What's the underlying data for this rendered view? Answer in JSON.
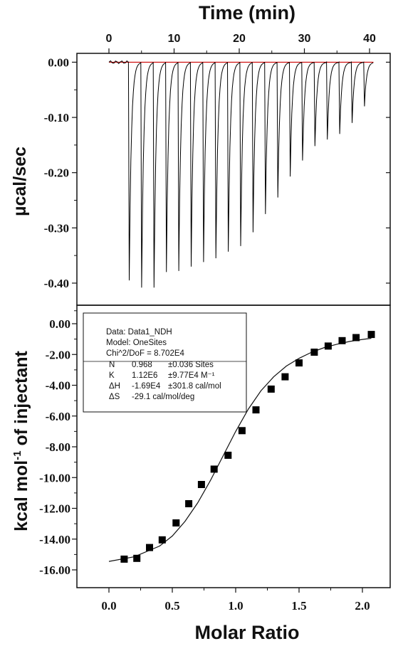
{
  "chart_data": [
    {
      "type": "line",
      "panel": "raw-thermogram",
      "title": "Time (min)",
      "ylabel": "µcal/sec",
      "x_ticks": [
        "0",
        "10",
        "20",
        "30",
        "40"
      ],
      "xlim": [
        0,
        42
      ],
      "y_ticks": [
        "0.00",
        "-0.10",
        "-0.20",
        "-0.30",
        "-0.40"
      ],
      "ylim": [
        -0.44,
        0.016
      ],
      "baseline_color": "#cc0000",
      "trace_color": "#000000",
      "injection_times_min": [
        3.0,
        4.9,
        6.8,
        8.7,
        10.6,
        12.5,
        14.4,
        16.3,
        18.2,
        20.1,
        22.0,
        23.9,
        25.8,
        27.7,
        29.6,
        31.5,
        33.4,
        35.3,
        37.2,
        39.1
      ],
      "peak_values": [
        -0.395,
        -0.408,
        -0.408,
        -0.38,
        -0.378,
        -0.37,
        -0.362,
        -0.355,
        -0.343,
        -0.333,
        -0.308,
        -0.275,
        -0.245,
        -0.207,
        -0.178,
        -0.152,
        -0.14,
        -0.13,
        -0.11,
        -0.08
      ]
    },
    {
      "type": "scatter",
      "panel": "binding-isotherm",
      "xlabel": "Molar Ratio",
      "ylabel": "kcal mol",
      "ylabel_sup": "-1",
      "ylabel_rest": " of injectant",
      "x_ticks": [
        "0.0",
        "0.5",
        "1.0",
        "1.5",
        "2.0"
      ],
      "xlim": [
        -0.1,
        2.2
      ],
      "y_ticks": [
        "0.00",
        "-2.00",
        "-4.00",
        "-6.00",
        "-8.00",
        "-10.00",
        "-12.00",
        "-14.00",
        "-16.00"
      ],
      "ylim": [
        -16.8,
        0.5
      ],
      "series": [
        {
          "x": [
            0.12,
            0.22,
            0.32,
            0.42,
            0.53,
            0.63,
            0.73,
            0.83,
            0.94,
            1.05,
            1.16,
            1.28,
            1.39,
            1.5,
            1.62,
            1.73,
            1.84,
            1.95,
            2.07
          ],
          "y": [
            -15.3,
            -15.25,
            -14.55,
            -14.05,
            -12.95,
            -11.7,
            -10.45,
            -9.45,
            -8.55,
            -6.95,
            -5.6,
            -4.25,
            -3.45,
            -2.55,
            -1.85,
            -1.45,
            -1.1,
            -0.9,
            -0.7
          ]
        }
      ],
      "fit_curve": {
        "x": [
          0.0,
          0.2,
          0.4,
          0.5,
          0.6,
          0.7,
          0.8,
          0.9,
          1.0,
          1.1,
          1.2,
          1.3,
          1.4,
          1.5,
          1.6,
          1.7,
          1.8,
          1.9,
          2.0,
          2.07
        ],
        "y": [
          -15.45,
          -15.15,
          -14.45,
          -13.8,
          -12.85,
          -11.65,
          -10.2,
          -8.6,
          -7.0,
          -5.55,
          -4.35,
          -3.45,
          -2.75,
          -2.25,
          -1.85,
          -1.55,
          -1.33,
          -1.15,
          -1.02,
          -0.95
        ]
      },
      "legend": {
        "lines": [
          "Data: Data1_NDH",
          "Model: OneSites",
          "Chi^2/DoF = 8.702E4"
        ],
        "params": [
          {
            "name": "N",
            "value": "0.968",
            "error": "±0.036 Sites"
          },
          {
            "name": "K",
            "value": "1.12E6",
            "error": "±9.77E4 M⁻¹"
          },
          {
            "name": "ΔH",
            "value": "-1.69E4",
            "error": "±301.8 cal/mol"
          },
          {
            "name": "ΔS",
            "value": "-29.1 cal/mol/deg",
            "error": ""
          }
        ]
      }
    }
  ]
}
